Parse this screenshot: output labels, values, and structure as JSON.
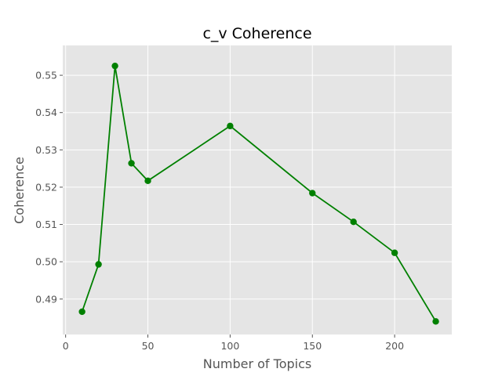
{
  "chart_data": {
    "type": "line",
    "title": "c_v Coherence",
    "xlabel": "Number of Topics",
    "ylabel": "Coherence",
    "x": [
      10,
      20,
      30,
      40,
      50,
      100,
      150,
      175,
      200,
      225
    ],
    "series": [
      {
        "values": [
          0.4866,
          0.4993,
          0.5525,
          0.5264,
          0.5217,
          0.5364,
          0.5184,
          0.5107,
          0.5024,
          0.484
        ],
        "color": "#008000",
        "marker": "circle"
      }
    ],
    "xlim": [
      -1.75,
      234.75
    ],
    "ylim": [
      0.4805,
      0.558
    ],
    "xticks": [
      0,
      50,
      100,
      150,
      200
    ],
    "yticks": [
      0.49,
      0.5,
      0.51,
      0.52,
      0.53,
      0.54,
      0.55
    ],
    "xtick_labels": [
      "0",
      "50",
      "100",
      "150",
      "200"
    ],
    "ytick_labels": [
      "0.49",
      "0.50",
      "0.51",
      "0.52",
      "0.53",
      "0.54",
      "0.55"
    ],
    "grid": true,
    "background": "#e5e5e5",
    "legend": "none"
  }
}
